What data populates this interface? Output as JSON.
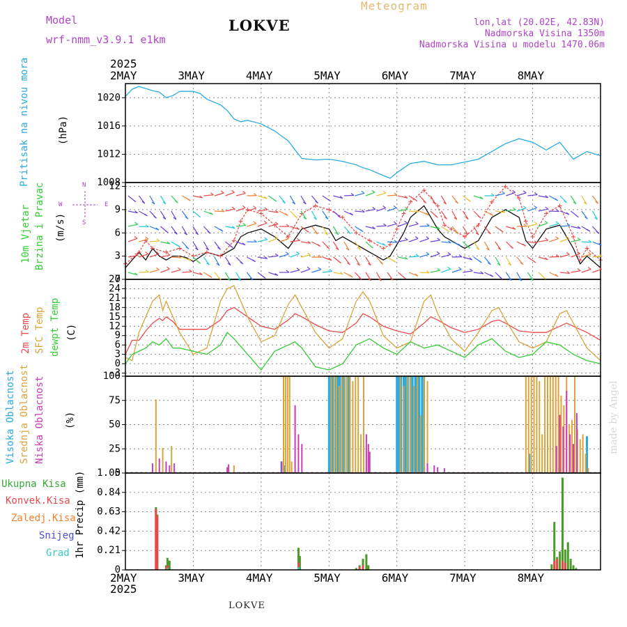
{
  "header": {
    "model_label": "Model",
    "model_name": "wrf-nmm_v3.9.1 e1km",
    "station": "LOKVE",
    "meteogram": "Meteogram",
    "lonlat": "lon,lat (20.02E, 42.83N)",
    "elevation": "Nadmorska Visina 1350m",
    "model_elevation": "Nadmorska Visina u modelu 1470.06m"
  },
  "footer": {
    "station": "LOKVE",
    "credit": "made by Angel"
  },
  "colors": {
    "pressure": "#29abe2",
    "temp2m": "#e84a4a",
    "sfc_temp": "#dba33a",
    "dewpoint": "#33cc33",
    "cloud_high": "#29abe2",
    "cloud_mid": "#dba33a",
    "cloud_low": "#c83cb4",
    "precip_total": "#4a9a2a",
    "precip_conv": "#e84a4a",
    "precip_frozen": "#f08030",
    "snow": "#4a4adc",
    "graupel": "#33ccbb",
    "wind_mean": "#111111",
    "wind_gust": "#e84a4a"
  },
  "chart_data": [
    {
      "type": "line",
      "panel": "pressure",
      "ylabel": "(hPa)",
      "side_label": "Pritisak na nivou mora",
      "year": "2025",
      "x_ticks": [
        "2MAY",
        "3MAY",
        "4MAY",
        "5MAY",
        "6MAY",
        "7MAY",
        "8MAY"
      ],
      "ylim": [
        1008,
        1022
      ],
      "y_ticks": [
        "1008",
        "1012",
        "1016",
        "1020"
      ],
      "grid": true,
      "series": [
        {
          "x": [
            0,
            0.1,
            0.2,
            0.3,
            0.4,
            0.5,
            0.6,
            0.7,
            0.8,
            1.0,
            1.1,
            1.2,
            1.4,
            1.5,
            1.6,
            1.7,
            1.8,
            2.0,
            2.2,
            2.4,
            2.5,
            2.6,
            2.8,
            3.0,
            3.2,
            3.4,
            3.5,
            3.6,
            3.8,
            3.9,
            4.0,
            4.2,
            4.4,
            4.6,
            4.8,
            5.0,
            5.2,
            5.4,
            5.6,
            5.8,
            6.0,
            6.2,
            6.4,
            6.6,
            6.8,
            7.0
          ],
          "values": [
            1020.2,
            1021.2,
            1021.6,
            1021.3,
            1021.0,
            1020.8,
            1020.0,
            1020.3,
            1020.9,
            1020.9,
            1020.6,
            1019.8,
            1019.0,
            1018.2,
            1017.0,
            1016.6,
            1016.8,
            1016.3,
            1015.3,
            1013.9,
            1012.6,
            1011.4,
            1011.2,
            1011.3,
            1011.0,
            1010.5,
            1010.1,
            1009.8,
            1009.0,
            1008.6,
            1009.4,
            1010.7,
            1011.0,
            1010.5,
            1010.5,
            1010.9,
            1011.3,
            1012.4,
            1013.5,
            1014.2,
            1013.7,
            1012.6,
            1013.7,
            1011.3,
            1012.4,
            1011.8
          ]
        }
      ]
    },
    {
      "type": "line",
      "panel": "wind",
      "ylabel": "(m/s)",
      "side_label_1": "10m Vjetar",
      "side_label_2": "Brzina i Pravac",
      "compass": {
        "n": "N",
        "s": "S",
        "w": "W",
        "e": "E"
      },
      "ylim": [
        0,
        12.5
      ],
      "y_ticks": [
        "0",
        "3",
        "6",
        "9",
        "12"
      ],
      "grid": true,
      "series": [
        {
          "name": "mean",
          "x": [
            0,
            0.1,
            0.2,
            0.3,
            0.4,
            0.5,
            0.6,
            0.7,
            0.8,
            0.9,
            1.0,
            1.2,
            1.4,
            1.6,
            1.7,
            1.8,
            2.0,
            2.2,
            2.4,
            2.6,
            2.8,
            3.0,
            3.1,
            3.2,
            3.4,
            3.6,
            3.7,
            3.8,
            3.9,
            4.0,
            4.1,
            4.2,
            4.4,
            4.6,
            4.7,
            4.8,
            4.9,
            5.0,
            5.2,
            5.4,
            5.6,
            5.8,
            5.9,
            6.0,
            6.2,
            6.4,
            6.6,
            6.7,
            6.8,
            7.0
          ],
          "values": [
            1.5,
            2.5,
            3.5,
            2.5,
            4.0,
            3.0,
            2.5,
            3.0,
            3.0,
            2.8,
            2.3,
            3.5,
            3.0,
            4.0,
            5.5,
            6.0,
            6.5,
            5.5,
            4.0,
            6.5,
            7.0,
            6.5,
            5.0,
            5.5,
            4.5,
            3.5,
            3.0,
            2.5,
            3.0,
            4.5,
            6.0,
            8.0,
            9.5,
            6.5,
            5.5,
            5.0,
            4.5,
            4.0,
            5.0,
            8.0,
            9.0,
            8.0,
            5.0,
            4.0,
            6.5,
            7.0,
            4.0,
            2.0,
            3.0,
            1.5
          ]
        },
        {
          "name": "gust",
          "x": [
            0,
            0.2,
            0.3,
            0.4,
            0.6,
            0.8,
            1.0,
            1.2,
            1.4,
            1.6,
            1.7,
            1.8,
            2.0,
            2.2,
            2.4,
            2.6,
            2.8,
            3.0,
            3.2,
            3.4,
            3.6,
            3.8,
            3.9,
            4.0,
            4.1,
            4.2,
            4.4,
            4.6,
            4.7,
            4.8,
            5.0,
            5.2,
            5.4,
            5.6,
            5.8,
            5.9,
            6.0,
            6.2,
            6.4,
            6.6,
            6.7,
            6.8,
            7.0
          ],
          "values": [
            2.0,
            3.5,
            5.0,
            4.0,
            3.5,
            4.0,
            3.0,
            3.5,
            3.0,
            5.0,
            7.5,
            9.0,
            8.5,
            7.0,
            5.5,
            8.5,
            9.5,
            9.0,
            8.0,
            6.0,
            5.0,
            4.0,
            4.5,
            6.5,
            8.5,
            10.0,
            11.5,
            9.5,
            7.0,
            6.5,
            5.5,
            7.0,
            10.0,
            12.0,
            10.5,
            7.5,
            5.5,
            8.5,
            9.5,
            5.5,
            2.5,
            4.0,
            2.5
          ]
        }
      ]
    },
    {
      "type": "line",
      "panel": "temperature",
      "ylabel": "(C)",
      "side_label_1": "2m Temp",
      "side_label_2": "SFC Temp",
      "side_label_3": "dewpt Temp",
      "ylim": [
        -4,
        27
      ],
      "y_ticks": [
        "-3",
        "0",
        "3",
        "6",
        "9",
        "12",
        "15",
        "18",
        "21",
        "24",
        "27"
      ],
      "grid": true,
      "series": [
        {
          "name": "2m Temp",
          "x": [
            0,
            0.1,
            0.2,
            0.3,
            0.4,
            0.5,
            0.55,
            0.6,
            0.7,
            0.8,
            1.0,
            1.2,
            1.4,
            1.5,
            1.6,
            1.8,
            2.0,
            2.2,
            2.4,
            2.5,
            2.6,
            2.8,
            3.0,
            3.2,
            3.4,
            3.5,
            3.6,
            3.8,
            4.0,
            4.2,
            4.4,
            4.5,
            4.6,
            4.8,
            5.0,
            5.2,
            5.4,
            5.5,
            5.6,
            5.8,
            6.0,
            6.2,
            6.4,
            6.5,
            6.6,
            6.8,
            7.0
          ],
          "values": [
            3,
            7.5,
            7.5,
            10.5,
            13,
            14.5,
            13.8,
            15,
            13.5,
            11,
            11,
            11,
            14,
            17,
            18,
            15,
            12,
            11,
            14,
            16,
            15,
            12.5,
            10.5,
            10,
            13,
            16,
            15,
            12,
            10.5,
            9.5,
            13,
            15,
            14,
            11.5,
            10,
            11,
            13.5,
            14,
            13,
            10.5,
            10,
            10,
            12,
            13,
            12,
            10,
            7.5
          ]
        },
        {
          "name": "SFC Temp",
          "x": [
            0,
            0.1,
            0.2,
            0.3,
            0.4,
            0.5,
            0.55,
            0.6,
            0.7,
            0.8,
            1.0,
            1.2,
            1.4,
            1.5,
            1.6,
            1.8,
            2.0,
            2.2,
            2.4,
            2.5,
            2.6,
            2.8,
            3.0,
            3.2,
            3.4,
            3.5,
            3.6,
            3.8,
            4.0,
            4.2,
            4.4,
            4.5,
            4.6,
            4.8,
            5.0,
            5.2,
            5.4,
            5.5,
            5.6,
            5.8,
            6.0,
            6.2,
            6.4,
            6.5,
            6.6,
            6.8,
            7.0
          ],
          "values": [
            2,
            1,
            10,
            15,
            20,
            22,
            17,
            20,
            15,
            10,
            3,
            5,
            20,
            24,
            25,
            15,
            7,
            9,
            19,
            22,
            18,
            10,
            5,
            8,
            20,
            23,
            20,
            9,
            5,
            7,
            20,
            22,
            16,
            8,
            4,
            10,
            17,
            18,
            14,
            7,
            5,
            7,
            16,
            17,
            13,
            5,
            1
          ]
        },
        {
          "name": "dewpt Temp",
          "x": [
            0,
            0.1,
            0.2,
            0.3,
            0.4,
            0.5,
            0.6,
            0.7,
            0.8,
            1.0,
            1.2,
            1.4,
            1.5,
            1.6,
            1.8,
            2.0,
            2.2,
            2.4,
            2.5,
            2.6,
            2.8,
            3.0,
            3.2,
            3.4,
            3.6,
            3.8,
            4.0,
            4.2,
            4.4,
            4.6,
            4.8,
            5.0,
            5.2,
            5.4,
            5.6,
            5.8,
            6.0,
            6.2,
            6.4,
            6.6,
            6.8,
            7.0
          ],
          "values": [
            0,
            3,
            4,
            5,
            7,
            6,
            8,
            5,
            5,
            4,
            3,
            6,
            10,
            8,
            3,
            -2,
            4,
            6,
            7,
            5,
            -1,
            -2,
            0,
            6,
            8,
            5,
            3,
            7,
            5,
            6,
            4,
            2,
            6,
            8,
            4,
            2,
            3,
            7,
            6,
            3,
            1,
            0
          ]
        }
      ]
    },
    {
      "type": "bar",
      "panel": "clouds",
      "ylabel": "(%)",
      "side_label_1": "Visoka Oblacnost",
      "side_label_2": "Srednja Oblacnost",
      "side_label_3": "Niska Oblacnost",
      "ylim": [
        0,
        100
      ],
      "y_ticks": [
        "0",
        "25",
        "50",
        "75",
        "100"
      ],
      "grid": true,
      "series": [
        {
          "name": "Visoka Oblacnost",
          "x": [
            2.3,
            2.34,
            3.0,
            3.03,
            3.06,
            3.1,
            3.13,
            3.16,
            3.2,
            3.23,
            3.27,
            3.3,
            4.0,
            4.03,
            4.06,
            4.1,
            4.13,
            4.16,
            4.2,
            4.23,
            4.27,
            4.3,
            4.33,
            4.37,
            4.4,
            5.95,
            6.8
          ],
          "values": [
            12,
            8,
            100,
            100,
            100,
            100,
            100,
            100,
            100,
            100,
            100,
            100,
            100,
            100,
            100,
            100,
            100,
            100,
            100,
            100,
            100,
            100,
            100,
            100,
            100,
            20,
            38
          ]
        },
        {
          "name": "Srednja Oblacnost",
          "x": [
            0.45,
            0.55,
            0.68,
            1.6,
            2.33,
            2.36,
            2.39,
            2.42,
            2.45,
            3.03,
            3.07,
            3.11,
            3.15,
            3.19,
            3.23,
            3.27,
            3.31,
            3.35,
            3.39,
            3.43,
            3.47,
            3.51,
            3.55,
            4.05,
            4.1,
            4.15,
            4.2,
            4.25,
            4.3,
            4.35,
            4.4,
            4.45,
            5.9,
            5.94,
            5.98,
            6.02,
            6.06,
            6.1,
            6.14,
            6.18,
            6.22,
            6.26,
            6.3,
            6.34,
            6.38,
            6.42,
            6.46,
            6.5,
            6.54,
            6.58,
            6.62,
            6.66,
            6.7,
            6.74,
            6.78,
            6.82
          ],
          "values": [
            76,
            26,
            28,
            8,
            100,
            100,
            100,
            100,
            12,
            100,
            100,
            100,
            90,
            100,
            100,
            100,
            100,
            95,
            100,
            100,
            40,
            100,
            15,
            100,
            90,
            100,
            100,
            90,
            100,
            60,
            100,
            95,
            100,
            100,
            100,
            100,
            100,
            95,
            40,
            100,
            100,
            100,
            100,
            100,
            100,
            80,
            70,
            100,
            50,
            55,
            100,
            45,
            35,
            40,
            20,
            5
          ]
        },
        {
          "name": "Niska Oblacnost",
          "x": [
            0.4,
            0.5,
            0.6,
            0.65,
            0.72,
            1.5,
            1.52,
            2.3,
            2.5,
            2.55,
            2.6,
            3.55,
            3.58,
            3.6,
            4.45,
            4.55,
            4.6,
            4.7,
            6.35,
            6.4,
            6.45,
            6.5,
            6.55,
            6.6,
            6.65
          ],
          "values": [
            10,
            15,
            12,
            8,
            10,
            6,
            9,
            12,
            70,
            40,
            30,
            40,
            30,
            22,
            10,
            8,
            6,
            5,
            28,
            60,
            48,
            85,
            40,
            30,
            62
          ]
        }
      ]
    },
    {
      "type": "bar",
      "panel": "precipitation",
      "ylabel": "1hr Precip (mm)",
      "legend": [
        "Ukupna Kisa",
        "Konvek.Kisa",
        "Zaledj.Kisa",
        "Snijeg",
        "Grad"
      ],
      "ylim": [
        0,
        1.05
      ],
      "y_ticks": [
        "0",
        "0.21",
        "0.42",
        "0.63",
        "0.84",
        "1.05"
      ],
      "x_ticks": [
        "2MAY",
        "3MAY",
        "4MAY",
        "5MAY",
        "6MAY",
        "7MAY",
        "8MAY"
      ],
      "year": "2025",
      "grid": true,
      "series": [
        {
          "name": "Ukupna Kisa",
          "x": [
            0.45,
            0.47,
            0.6,
            0.62,
            0.65,
            2.55,
            2.57,
            3.4,
            3.45,
            3.5,
            3.55,
            3.58,
            6.28,
            6.32,
            6.36,
            6.4,
            6.44,
            6.48,
            6.52,
            6.56,
            6.6,
            6.64
          ],
          "values": [
            0.68,
            0.6,
            0.05,
            0.13,
            0.1,
            0.24,
            0.15,
            0.02,
            0.05,
            0.12,
            0.17,
            0.05,
            0.06,
            0.52,
            0.14,
            0.2,
            1.0,
            0.22,
            0.3,
            0.12,
            0.05,
            0.02
          ]
        },
        {
          "name": "Konvek.Kisa",
          "x": [
            0.45,
            0.47,
            0.6,
            0.62,
            2.55,
            3.45,
            3.5,
            6.32,
            6.36,
            6.44,
            6.48
          ],
          "values": [
            0.66,
            0.58,
            0.03,
            0.05,
            0.08,
            0.03,
            0.05,
            0.1,
            0.12,
            0.1,
            0.08
          ]
        },
        {
          "name": "Zaledj.Kisa",
          "x": [],
          "values": []
        },
        {
          "name": "Snijeg",
          "x": [],
          "values": []
        },
        {
          "name": "Grad",
          "x": [
            0.62,
            2.55
          ],
          "values": [
            0.02,
            0.03
          ]
        }
      ]
    }
  ]
}
